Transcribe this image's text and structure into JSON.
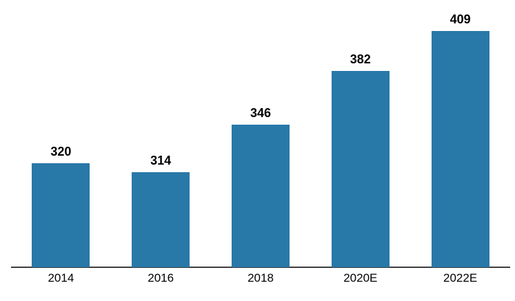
{
  "chart_data": {
    "type": "bar",
    "title": "",
    "xlabel": "",
    "ylabel": "",
    "categories": [
      "2014",
      "2016",
      "2018",
      "2020E",
      "2022E"
    ],
    "values": [
      320,
      314,
      346,
      382,
      409
    ],
    "value_labels_shown": true,
    "value_label_position": "above bars",
    "ylim": [
      250,
      430
    ],
    "grid": false,
    "legend": false,
    "y_axis_shown": false,
    "x_axis_shown": true,
    "bar_color": "#2878A8",
    "axis_color": "#3d3d3d",
    "label_color": "#000000",
    "background_color": "#ffffff"
  }
}
